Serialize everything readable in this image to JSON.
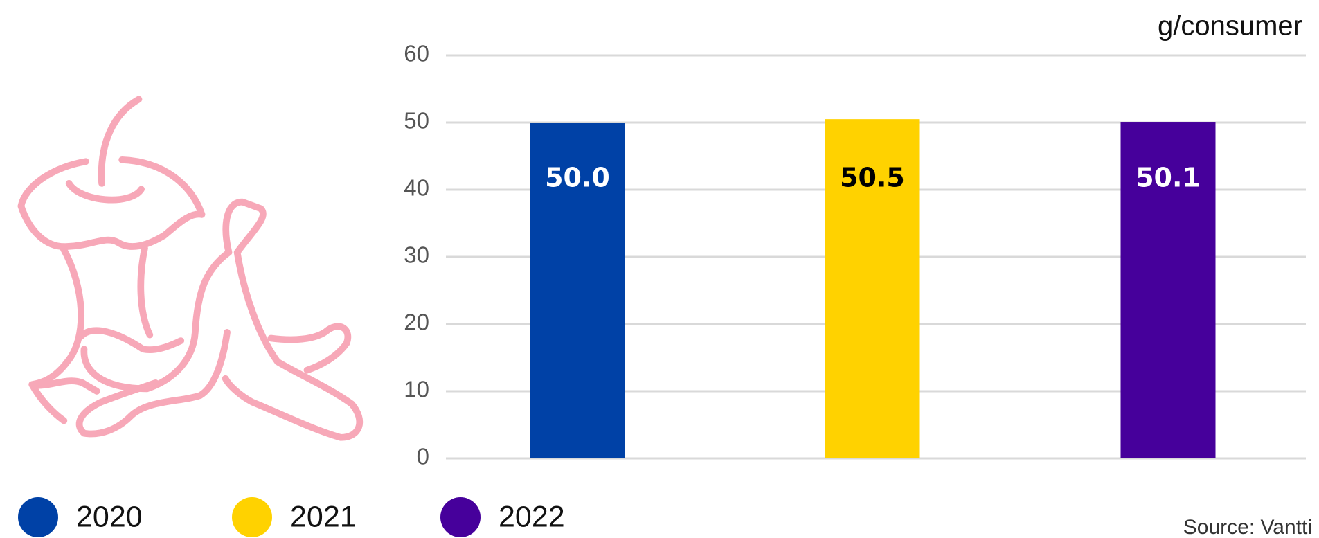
{
  "chart_data": {
    "type": "bar",
    "unit_label": "g/consumer",
    "source": "Source: Vantti",
    "series": [
      {
        "name": "2020",
        "color": "#0041a6",
        "label_color": "#ffffff",
        "values": [
          50
        ],
        "value_labels": [
          "50.0"
        ]
      },
      {
        "name": "2021",
        "color": "#ffd200",
        "label_color": "#000000",
        "values": [
          50.5
        ]
      },
      {
        "name": "2022",
        "color": "#46009b",
        "label_color": "#ffffff",
        "values": [
          50.1
        ]
      }
    ],
    "ylim": [
      0,
      60
    ],
    "yticks": [
      0,
      10,
      20,
      30,
      40,
      50,
      60
    ],
    "grid": true
  }
}
